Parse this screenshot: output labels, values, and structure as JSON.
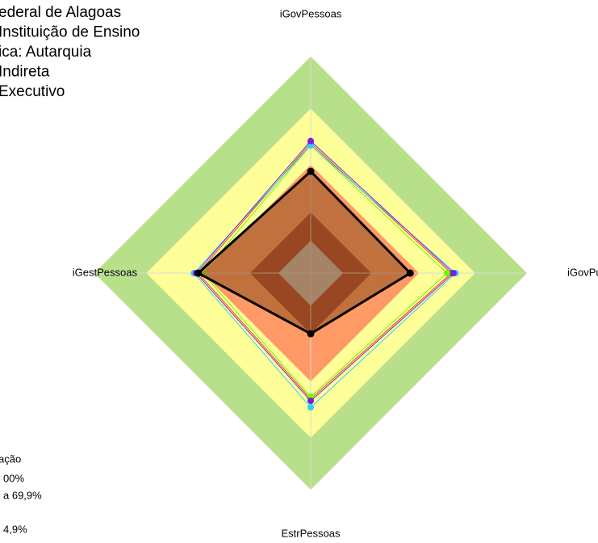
{
  "chart_data": {
    "type": "radar",
    "title_lines": [
      "ederal de Alagoas",
      " Instituição de Ensino",
      "ica: Autarquia",
      " Indireta",
      "Executivo"
    ],
    "categories": [
      "iGovPessoas",
      "iGovPub",
      "EstrPessoas",
      "iGestPessoas"
    ],
    "rlim": [
      0,
      100
    ],
    "bands": [
      {
        "color": "#b8e08a",
        "value": 100
      },
      {
        "color": "#ffff99",
        "value": 76
      },
      {
        "color": "#ff9966",
        "value": 50
      },
      {
        "color": "#a83a28",
        "value": 28
      },
      {
        "color": "#c0c0c0",
        "value": 15
      }
    ],
    "series": [
      {
        "color": "#ff3333",
        "values": [
          60,
          65,
          58,
          52
        ]
      },
      {
        "color": "#66ff00",
        "values": [
          59,
          63,
          57,
          50
        ]
      },
      {
        "color": "#33ccff",
        "values": [
          59,
          67,
          62,
          54
        ]
      },
      {
        "color": "#7a1fd6",
        "values": [
          61,
          66,
          59,
          53
        ]
      },
      {
        "color": "#000000",
        "values": [
          47,
          46,
          28,
          52
        ],
        "fill": "rgba(140,80,30,0.55)"
      }
    ],
    "legend_lines": [
      "ação",
      "00%",
      "a 69,9%",
      "4,9%"
    ]
  }
}
